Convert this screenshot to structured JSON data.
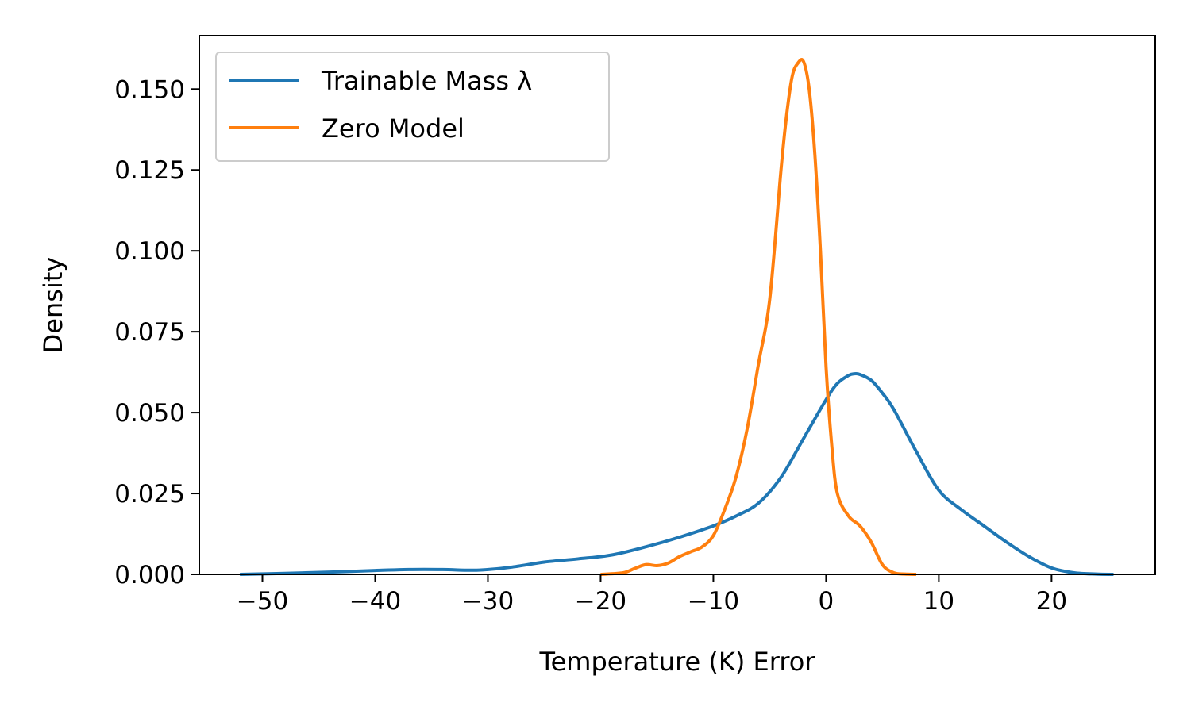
{
  "chart_data": {
    "type": "line",
    "title": "",
    "xlabel": "Temperature (K) Error",
    "ylabel": "Density",
    "xlim": [
      -55.6,
      29.2
    ],
    "ylim": [
      0,
      0.1665
    ],
    "xticks": [
      -50,
      -40,
      -30,
      -20,
      -10,
      0,
      10,
      20
    ],
    "yticks": [
      0.0,
      0.025,
      0.05,
      0.075,
      0.1,
      0.125,
      0.15
    ],
    "xtick_labels": [
      "−50",
      "−40",
      "−30",
      "−20",
      "−10",
      "0",
      "10",
      "20"
    ],
    "ytick_labels": [
      "0.000",
      "0.025",
      "0.050",
      "0.075",
      "0.100",
      "0.125",
      "0.150"
    ],
    "grid": false,
    "legend_position": "top-left",
    "series": [
      {
        "name": "Trainable Mass λ",
        "color": "#1f77b4",
        "x": [
          -52,
          -48,
          -44,
          -40,
          -37,
          -34,
          -31,
          -28,
          -25,
          -22,
          -19,
          -16,
          -13,
          -10,
          -8,
          -6,
          -4,
          -2,
          0,
          1,
          2,
          2.5,
          3,
          4,
          5,
          6,
          8,
          10,
          12,
          14,
          16,
          18,
          20,
          22,
          24,
          25.5
        ],
        "y": [
          0.0,
          0.0003,
          0.0007,
          0.0012,
          0.0015,
          0.0015,
          0.0013,
          0.0022,
          0.0038,
          0.0048,
          0.006,
          0.0085,
          0.0115,
          0.015,
          0.018,
          0.022,
          0.03,
          0.042,
          0.054,
          0.059,
          0.0615,
          0.062,
          0.0618,
          0.06,
          0.056,
          0.051,
          0.038,
          0.026,
          0.02,
          0.015,
          0.01,
          0.0055,
          0.002,
          0.0005,
          0.0001,
          0.0
        ]
      },
      {
        "name": "Zero Model",
        "color": "#ff7f0e",
        "x": [
          -20,
          -18,
          -17,
          -16,
          -15,
          -14,
          -13,
          -12,
          -11,
          -10,
          -9,
          -8,
          -7,
          -6,
          -5,
          -4,
          -3.5,
          -3,
          -2.5,
          -2,
          -1.5,
          -1,
          -0.5,
          0,
          0.5,
          1,
          2,
          3,
          4,
          5,
          6,
          7,
          8
        ],
        "y": [
          0.0,
          0.0005,
          0.0018,
          0.003,
          0.0027,
          0.0035,
          0.0055,
          0.007,
          0.0085,
          0.012,
          0.02,
          0.03,
          0.045,
          0.065,
          0.085,
          0.125,
          0.142,
          0.154,
          0.158,
          0.1585,
          0.15,
          0.13,
          0.1,
          0.064,
          0.04,
          0.025,
          0.018,
          0.015,
          0.01,
          0.003,
          0.0005,
          0.0001,
          0.0
        ]
      }
    ]
  }
}
